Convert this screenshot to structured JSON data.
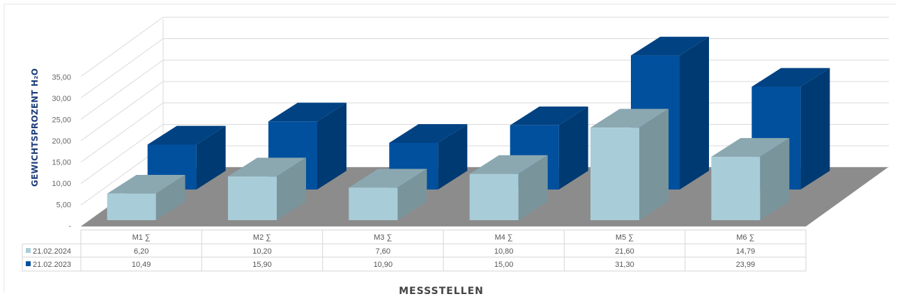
{
  "chart_data": {
    "type": "bar",
    "subtype": "3d-clustered-column-with-data-table",
    "title": "",
    "ylabel": "GEWICHTSPROZENT H₂O",
    "xlabel": "MESSSTELLEN",
    "categories": [
      "M1 ∑",
      "M2 ∑",
      "M3 ∑",
      "M4 ∑",
      "M5 ∑",
      "M6 ∑"
    ],
    "yticks": [
      "-",
      "5,00",
      "10,00",
      "15,00",
      "20,00",
      "25,00",
      "30,00",
      "35,00"
    ],
    "ylim": [
      0,
      35
    ],
    "grid": true,
    "legend": "data-table-left",
    "series": [
      {
        "name": "21.02.2024",
        "color": "#a9cdd8",
        "values": [
          6.2,
          10.2,
          7.6,
          10.8,
          21.6,
          14.79
        ],
        "labels": [
          "6,20",
          "10,20",
          "7,60",
          "10,80",
          "21,60",
          "14,79"
        ]
      },
      {
        "name": "21.02.2023",
        "color": "#00509e",
        "values": [
          10.49,
          15.9,
          10.9,
          15.0,
          31.3,
          23.99
        ],
        "labels": [
          "10,49",
          "15,90",
          "10,90",
          "15,00",
          "31,30",
          "23,99"
        ]
      }
    ]
  }
}
